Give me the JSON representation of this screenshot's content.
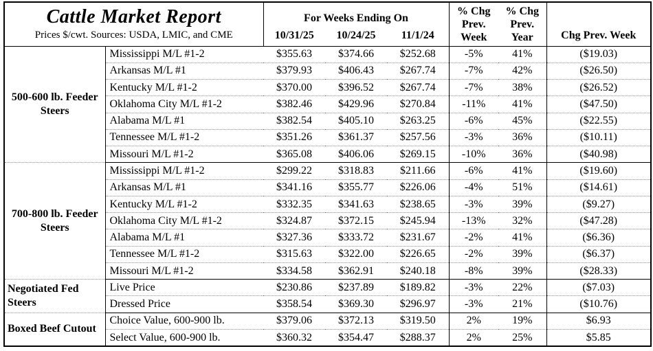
{
  "report": {
    "title": "Cattle Market Report",
    "subtitle": "Prices $/cwt. Sources: USDA, LMIC, and CME",
    "week_header": "For Weeks Ending On",
    "dates": [
      "10/31/25",
      "10/24/25",
      "11/1/24"
    ],
    "pct_week_header": "% Chg\nPrev.\nWeek",
    "pct_year_header": "% Chg\nPrev.\nYear",
    "chg_week_header": "Chg Prev. Week"
  },
  "colors": {
    "text": "#000000",
    "background": "#ffffff",
    "solid_border": "#000000",
    "row_divider": "#8a8a8a"
  },
  "groups": [
    {
      "label": "500-600 lb. Feeder Steers",
      "rows": [
        {
          "label": "Mississippi M/L #1-2",
          "values": [
            "$355.63",
            "$374.66",
            "$252.68",
            "-5%",
            "41%",
            "($19.03)"
          ]
        },
        {
          "label": "Arkansas M/L #1",
          "values": [
            "$379.93",
            "$406.43",
            "$267.74",
            "-7%",
            "42%",
            "($26.50)"
          ]
        },
        {
          "label": "Kentucky M/L #1-2",
          "values": [
            "$370.00",
            "$396.52",
            "$267.74",
            "-7%",
            "38%",
            "($26.52)"
          ]
        },
        {
          "label": "Oklahoma City M/L #1-2",
          "values": [
            "$382.46",
            "$429.96",
            "$270.84",
            "-11%",
            "41%",
            "($47.50)"
          ]
        },
        {
          "label": "Alabama M/L #1",
          "values": [
            "$382.54",
            "$405.10",
            "$263.25",
            "-6%",
            "45%",
            "($22.55)"
          ]
        },
        {
          "label": "Tennessee M/L #1-2",
          "values": [
            "$351.26",
            "$361.37",
            "$257.56",
            "-3%",
            "36%",
            "($10.11)"
          ]
        },
        {
          "label": "Missouri M/L #1-2",
          "values": [
            "$365.08",
            "$406.06",
            "$269.15",
            "-10%",
            "36%",
            "($40.98)"
          ]
        }
      ]
    },
    {
      "label": "700-800 lb. Feeder Steers",
      "rows": [
        {
          "label": "Mississippi M/L #1-2",
          "values": [
            "$299.22",
            "$318.83",
            "$211.66",
            "-6%",
            "41%",
            "($19.60)"
          ]
        },
        {
          "label": "Arkansas M/L #1",
          "values": [
            "$341.16",
            "$355.77",
            "$226.06",
            "-4%",
            "51%",
            "($14.61)"
          ]
        },
        {
          "label": "Kentucky M/L #1-2",
          "values": [
            "$332.35",
            "$341.63",
            "$238.65",
            "-3%",
            "39%",
            "($9.27)"
          ]
        },
        {
          "label": "Oklahoma City M/L #1-2",
          "values": [
            "$324.87",
            "$372.15",
            "$245.94",
            "-13%",
            "32%",
            "($47.28)"
          ]
        },
        {
          "label": "Alabama M/L #1",
          "values": [
            "$327.36",
            "$333.72",
            "$231.67",
            "-2%",
            "41%",
            "($6.36)"
          ]
        },
        {
          "label": "Tennessee M/L #1-2",
          "values": [
            "$315.63",
            "$322.00",
            "$226.65",
            "-2%",
            "39%",
            "($6.37)"
          ]
        },
        {
          "label": "Missouri M/L #1-2",
          "values": [
            "$334.58",
            "$362.91",
            "$240.18",
            "-8%",
            "39%",
            "($28.33)"
          ]
        }
      ]
    },
    {
      "label": "Negotiated Fed Steers",
      "align": "left",
      "rows": [
        {
          "label": "Live Price",
          "values": [
            "$230.86",
            "$237.89",
            "$189.82",
            "-3%",
            "22%",
            "($7.03)"
          ]
        },
        {
          "label": "Dressed Price",
          "values": [
            "$358.54",
            "$369.30",
            "$296.97",
            "-3%",
            "21%",
            "($10.76)"
          ]
        }
      ]
    },
    {
      "label": "Boxed Beef Cutout",
      "align": "left",
      "rows": [
        {
          "label": "Choice Value, 600-900 lb.",
          "values": [
            "$379.06",
            "$372.13",
            "$319.50",
            "2%",
            "19%",
            "$6.93"
          ]
        },
        {
          "label": "Select Value, 600-900 lb.",
          "values": [
            "$360.32",
            "$354.47",
            "$288.37",
            "2%",
            "25%",
            "$5.85"
          ]
        }
      ]
    }
  ]
}
